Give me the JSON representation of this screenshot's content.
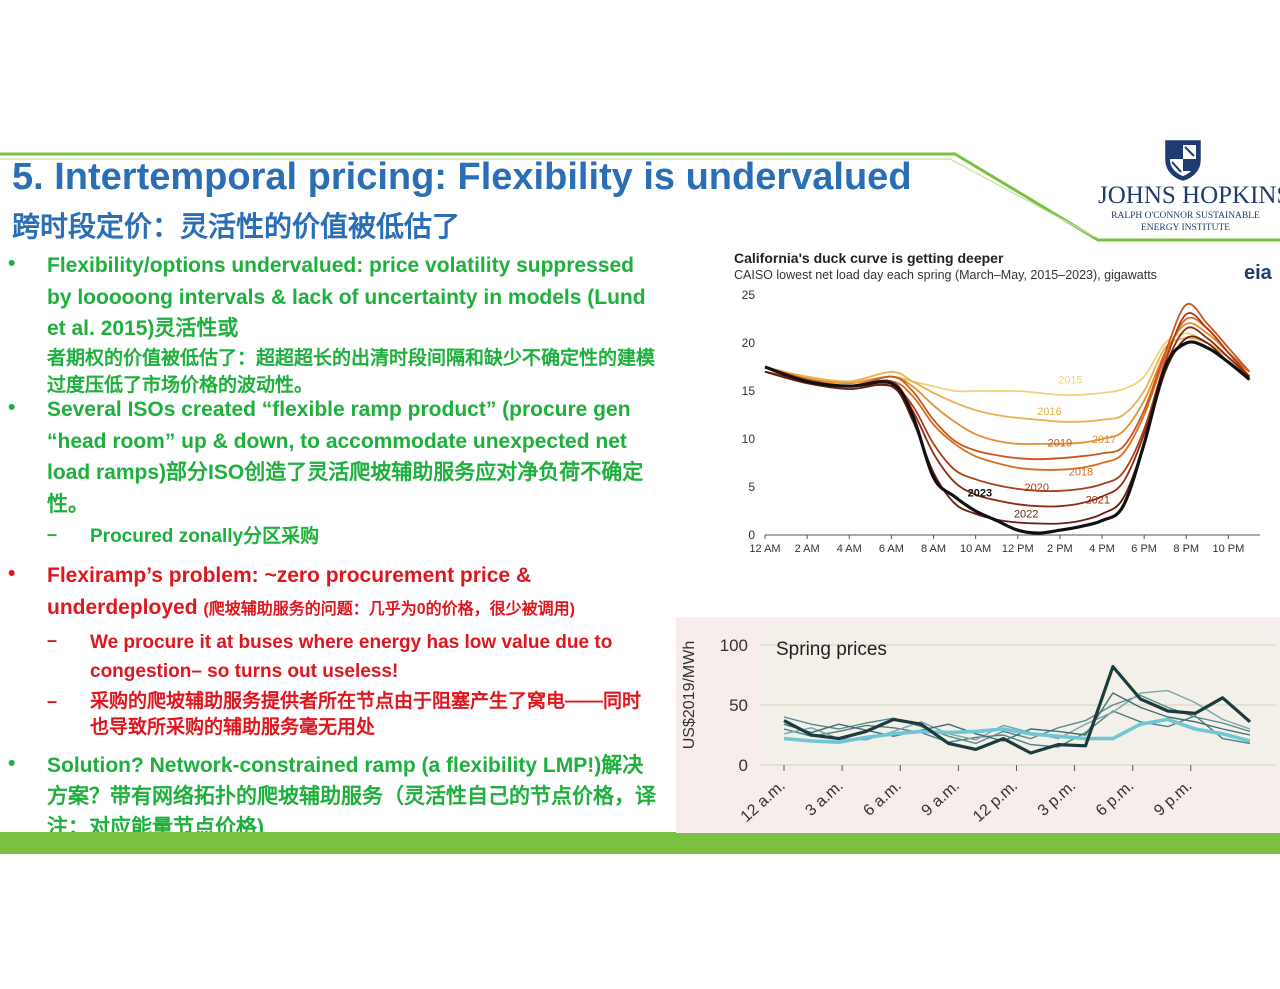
{
  "slide": {
    "title": "5. Intertemporal pricing: Flexibility is undervalued",
    "subtitle": "跨时段定价：灵活性的价值被低估了"
  },
  "logo": {
    "name": "JOHNS HOPKINS",
    "sub1": "RALPH O'CONNOR SUSTAINABLE",
    "sub2": "ENERGY INSTITUTE"
  },
  "bullets": [
    {
      "marker": "•",
      "text_en": "Flexibility/options undervalued: price volatility suppressed by looooong intervals & lack of uncertainty in models (Lund et al. 2015)灵活性或",
      "text_zh": "者期权的价值被低估了：超超超长的出清时段间隔和缺少不确定性的建模过度压低了市场价格的波动性。"
    },
    {
      "marker": "•",
      "text": "Several ISOs created “flexible ramp product” (procure gen “head room” up & down, to accommodate unexpected net load ramps)部分ISO创造了灵活爬坡辅助服务应对净负荷不确定性。",
      "sub": [
        {
          "marker": "–",
          "text": "Procured zonally分区采购"
        }
      ]
    },
    {
      "marker": "•",
      "text": "Flexiramp’s problem: ~zero procurement price & underdeployed",
      "text_small": "(爬坡辅助服务的问题：几乎为0的价格，很少被调用)",
      "sub": [
        {
          "marker": "–",
          "text": "We procure it at buses where energy has low value due to congestion– so turns out useless!"
        },
        {
          "marker": "–",
          "text": "采购的爬坡辅助服务提供者所在节点由于阻塞产生了窝电——同时也导致所采购的辅助服务毫无用处"
        }
      ]
    },
    {
      "marker": "•",
      "text": "Solution?  Network-constrained ramp (a flexibility LMP!)解决方案？带有网络拓扑的爬坡辅助服务（灵活性自己的节点价格，译注：对应能量节点价格)"
    }
  ],
  "colors": {
    "title_blue": "#2a6fb5",
    "green_text": "#1eaf3c",
    "red_text": "#e0161f",
    "bar_green": "#7ac142",
    "logo_navy": "#1f3c70"
  },
  "chart_data": [
    {
      "type": "line",
      "title": "California's duck curve is getting deeper",
      "subtitle": "CAISO lowest net load day each spring (March–May, 2015–2023), gigawatts",
      "source_logo": "eia",
      "x_tick_labels": [
        "12 AM",
        "2 AM",
        "4 AM",
        "6 AM",
        "8 AM",
        "10 AM",
        "12 PM",
        "2 PM",
        "4 PM",
        "6 PM",
        "8 PM",
        "10 PM"
      ],
      "y_tick_labels": [
        "0",
        "5",
        "10",
        "15",
        "20",
        "25"
      ],
      "ylim": [
        0,
        25
      ],
      "x_hours": [
        0,
        2,
        4,
        6,
        7,
        8,
        9,
        10,
        11,
        12,
        13,
        14,
        15,
        16,
        17,
        18,
        19,
        20,
        21,
        22,
        23
      ],
      "series": [
        {
          "name": "2015",
          "color": "#f3d27a",
          "values": [
            17.5,
            16.5,
            16,
            16.5,
            16,
            15.5,
            15,
            15,
            15,
            15,
            14.8,
            14.6,
            14.6,
            14.8,
            15.2,
            16.5,
            20,
            21,
            20,
            18.5,
            17
          ]
        },
        {
          "name": "2016",
          "color": "#eab24e",
          "values": [
            17.5,
            16.5,
            16,
            17,
            16,
            14.8,
            13.8,
            13,
            12.5,
            12.2,
            12,
            11.8,
            11.8,
            12,
            12.5,
            15,
            19.5,
            20.5,
            20,
            18.5,
            17
          ]
        },
        {
          "name": "2017",
          "color": "#e39030",
          "values": [
            17.5,
            16.3,
            15.8,
            16.5,
            15.5,
            13.5,
            11.8,
            10.5,
            9.8,
            9.5,
            9.5,
            9.5,
            9.6,
            10,
            10.8,
            14,
            19,
            22,
            21,
            19,
            17
          ]
        },
        {
          "name": "2018",
          "color": "#d86e20",
          "values": [
            17,
            16.2,
            15.5,
            16,
            14.5,
            11.5,
            9.5,
            8.2,
            7.5,
            7,
            6.8,
            6.8,
            7,
            7.5,
            8.5,
            12.5,
            18.5,
            22.5,
            21.5,
            19,
            17
          ]
        },
        {
          "name": "2019",
          "color": "#c9561c",
          "values": [
            17.5,
            16.2,
            15.5,
            16.5,
            15,
            12,
            9.8,
            8.8,
            8.3,
            8,
            7.9,
            8,
            8.2,
            8.5,
            9.2,
            13,
            19,
            24,
            22,
            19.5,
            17
          ]
        },
        {
          "name": "2020",
          "color": "#ad3c15",
          "values": [
            17,
            16,
            15.5,
            15.5,
            13.5,
            9.5,
            6.8,
            5.8,
            5.2,
            4.8,
            4.6,
            4.6,
            4.8,
            5.3,
            6.5,
            11,
            18,
            23,
            21.5,
            19,
            16.5
          ]
        },
        {
          "name": "2021",
          "color": "#8e2b12",
          "values": [
            17,
            16,
            15.5,
            16,
            13,
            8.5,
            5.5,
            4.2,
            3.6,
            3.2,
            3,
            3,
            3.3,
            4,
            5.5,
            10.5,
            17.5,
            21.5,
            20.5,
            18.5,
            16.5
          ]
        },
        {
          "name": "2022",
          "color": "#6b1d0d",
          "values": [
            17,
            15.8,
            15.2,
            15.5,
            12,
            6.5,
            3.3,
            2.2,
            1.6,
            1.3,
            1.2,
            1.2,
            1.5,
            2.2,
            3.8,
            9.5,
            17,
            20.5,
            20,
            18,
            16.5
          ]
        },
        {
          "name": "2023",
          "color": "#111111",
          "values": [
            17.5,
            16,
            15.5,
            15.8,
            12.5,
            6,
            4,
            2.5,
            1.5,
            0.5,
            0.2,
            0.5,
            0.9,
            1.5,
            3,
            9.5,
            17.5,
            20,
            19.5,
            18,
            16.2
          ]
        }
      ],
      "series_labels": [
        "2015",
        "2016",
        "2017",
        "2018",
        "2019",
        "2020",
        "2021",
        "2022",
        "2023"
      ]
    },
    {
      "type": "line",
      "title": "Spring prices",
      "ylabel": "US$2019/MWh",
      "ylim": [
        0,
        100
      ],
      "y_tick_labels": [
        "0",
        "50",
        "100"
      ],
      "x_tick_labels": [
        "12 a.m.",
        "3 a.m.",
        "6 a.m.",
        "9 a.m.",
        "12 p.m.",
        "3 p.m.",
        "6 p.m.",
        "9 p.m."
      ],
      "x_hours": [
        0,
        2,
        4,
        6,
        8,
        10,
        12,
        14,
        16,
        18,
        20,
        22,
        24
      ],
      "background": "#f8eded",
      "series": [
        {
          "color": "#1c3b3e",
          "width": 3.2,
          "values": [
            37,
            25,
            22,
            28,
            38,
            34,
            18,
            13,
            22,
            10,
            17,
            16,
            82
          ]
        },
        {
          "color": "#6fc7d3",
          "width": 3.6,
          "values": [
            22,
            20,
            19,
            23,
            26,
            28,
            27,
            28,
            30,
            26,
            24,
            22,
            22
          ]
        },
        {
          "color": "#4e7f83",
          "width": 1.4,
          "values": [
            30,
            24,
            28,
            33,
            31,
            27,
            19,
            23,
            25,
            17,
            15,
            27,
            45
          ]
        },
        {
          "color": "#5a8a8e",
          "width": 1.4,
          "values": [
            40,
            34,
            30,
            35,
            39,
            32,
            24,
            18,
            28,
            22,
            31,
            37,
            50
          ]
        },
        {
          "color": "#7aa5a9",
          "width": 1.4,
          "values": [
            26,
            31,
            22,
            21,
            28,
            36,
            26,
            21,
            33,
            27,
            22,
            34,
            44
          ]
        },
        {
          "color": "#3f6e72",
          "width": 1.4,
          "values": [
            34,
            27,
            34,
            29,
            24,
            29,
            34,
            26,
            20,
            30,
            28,
            25,
            60
          ]
        }
      ],
      "series_tail": [
        [
          82,
          55,
          45,
          43,
          56,
          36
        ],
        [
          22,
          34,
          38,
          30,
          26,
          20
        ],
        [
          45,
          36,
          32,
          41,
          22,
          18
        ],
        [
          50,
          58,
          48,
          40,
          35,
          28
        ],
        [
          44,
          60,
          62,
          52,
          38,
          30
        ],
        [
          60,
          48,
          40,
          36,
          30,
          25
        ]
      ]
    }
  ]
}
